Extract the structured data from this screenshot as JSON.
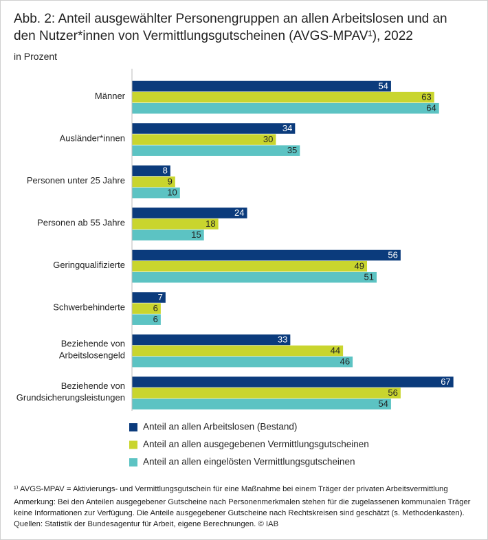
{
  "chart_data": {
    "type": "bar",
    "orientation": "horizontal",
    "title": "Abb. 2: Anteil ausgewählter Personengruppen an allen Arbeitslosen und an den Nutzer*innen von Vermittlungsgutscheinen (AVGS-MPAV¹), 2022",
    "subtitle": "in Prozent",
    "categories": [
      "Männer",
      "Ausländer*innen",
      "Personen unter 25 Jahre",
      "Personen ab 55 Jahre",
      "Geringqualifizierte",
      "Schwerbehinderte",
      "Beziehende von\nArbeitslosengeld",
      "Beziehende von\nGrundsicherungsleistungen"
    ],
    "series": [
      {
        "name": "Anteil an allen Arbeitslosen (Bestand)",
        "color": "#0b3b7c",
        "values": [
          54,
          34,
          8,
          24,
          56,
          7,
          33,
          67
        ]
      },
      {
        "name": "Anteil an allen ausgegebenen Vermittlungsgutscheinen",
        "color": "#c9d52e",
        "values": [
          63,
          30,
          9,
          18,
          49,
          6,
          44,
          56
        ]
      },
      {
        "name": "Anteil an allen eingelösten Vermittlungsgutscheinen",
        "color": "#5cc3c3",
        "values": [
          64,
          35,
          10,
          15,
          51,
          6,
          46,
          54
        ]
      }
    ],
    "notes": [
      "¹⁾ AVGS-MPAV = Aktivierungs- und Vermittlungsgutschein für eine Maßnahme bei einem Träger der privaten Arbeitsvermittlung",
      "Anmerkung: Bei den Anteilen ausgegebener Gutscheine nach Personenmerkmalen stehen für die zugelassenen kommunalen Träger keine Informationen zur Verfügung. Die Anteile ausgegebener Gutscheine nach Rechtskreisen sind geschätzt (s. Methodenkasten).",
      "Quellen: Statistik der Bundesagentur für Arbeit, eigene Berechnungen.  © IAB"
    ]
  }
}
